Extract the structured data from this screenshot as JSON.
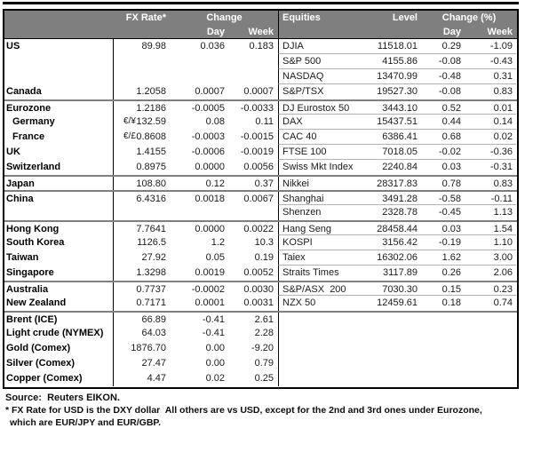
{
  "table": {
    "fx_header": {
      "rate": "FX Rate*",
      "change": "Change",
      "day": "Day",
      "week": "Week"
    },
    "eq_header": {
      "name": "Equities",
      "level": "Level",
      "change": "Change (%)",
      "day": "Day",
      "week": "Week"
    },
    "rows": [
      {
        "label": "US",
        "pair": "",
        "rate": "89.98",
        "day": "0.036",
        "week": "0.183",
        "name": "DJIA",
        "level": "11518.01",
        "eq_day": "0.29",
        "eq_week": "-1.09",
        "group": false,
        "indent": false
      },
      {
        "label": "",
        "pair": "",
        "rate": "",
        "day": "",
        "week": "",
        "name": "S&P 500",
        "level": "4155.86",
        "eq_day": "-0.08",
        "eq_week": "-0.43",
        "group": false,
        "indent": false
      },
      {
        "label": "",
        "pair": "",
        "rate": "",
        "day": "",
        "week": "",
        "name": "NASDAQ",
        "level": "13470.99",
        "eq_day": "-0.48",
        "eq_week": "0.31",
        "group": false,
        "indent": false
      },
      {
        "label": "Canada",
        "pair": "",
        "rate": "1.2058",
        "day": "0.0007",
        "week": "0.0007",
        "name": "S&P/TSX",
        "level": "19527.30",
        "eq_day": "-0.08",
        "eq_week": "0.83",
        "group": false,
        "indent": false
      },
      {
        "label": "Eurozone",
        "pair": "",
        "rate": "1.2186",
        "day": "-0.0005",
        "week": "-0.0033",
        "name": "DJ Eurostox 50",
        "level": "3443.10",
        "eq_day": "0.52",
        "eq_week": "0.01",
        "group": true,
        "indent": false
      },
      {
        "label": "Germany",
        "pair": "€/¥",
        "rate": "132.59",
        "day": "0.08",
        "week": "0.11",
        "name": "DAX",
        "level": "15437.51",
        "eq_day": "0.44",
        "eq_week": "0.14",
        "group": false,
        "indent": true
      },
      {
        "label": "France",
        "pair": "€/£",
        "rate": "0.8608",
        "day": "-0.0003",
        "week": "-0.0015",
        "name": "CAC 40",
        "level": "6386.41",
        "eq_day": "0.68",
        "eq_week": "0.02",
        "group": false,
        "indent": true
      },
      {
        "label": "UK",
        "pair": "",
        "rate": "1.4155",
        "day": "-0.0006",
        "week": "-0.0019",
        "name": "FTSE 100",
        "level": "7018.05",
        "eq_day": "-0.02",
        "eq_week": "-0.36",
        "group": false,
        "indent": false
      },
      {
        "label": "Switzerland",
        "pair": "",
        "rate": "0.8975",
        "day": "0.0000",
        "week": "0.0056",
        "name": "Swiss Mkt Index",
        "level": "2240.84",
        "eq_day": "0.03",
        "eq_week": "-0.31",
        "group": false,
        "indent": false
      },
      {
        "label": "Japan",
        "pair": "",
        "rate": "108.80",
        "day": "0.12",
        "week": "0.37",
        "name": "Nikkei",
        "level": "28317.83",
        "eq_day": "0.78",
        "eq_week": "0.83",
        "group": true,
        "indent": false
      },
      {
        "label": "China",
        "pair": "",
        "rate": "6.4316",
        "day": "0.0018",
        "week": "0.0067",
        "name": "Shanghai",
        "level": "3491.28",
        "eq_day": "-0.58",
        "eq_week": "-0.11",
        "group": true,
        "indent": false
      },
      {
        "label": "",
        "pair": "",
        "rate": "",
        "day": "",
        "week": "",
        "name": "Shenzen",
        "level": "2328.78",
        "eq_day": "-0.45",
        "eq_week": "1.13",
        "group": false,
        "indent": false
      },
      {
        "label": "Hong Kong",
        "pair": "",
        "rate": "7.7641",
        "day": "0.0000",
        "week": "0.0022",
        "name": "Hang Seng",
        "level": "28458.44",
        "eq_day": "0.03",
        "eq_week": "1.54",
        "group": true,
        "indent": false
      },
      {
        "label": "South Korea",
        "pair": "",
        "rate": "1126.5",
        "day": "1.2",
        "week": "10.3",
        "name": "KOSPI",
        "level": "3156.42",
        "eq_day": "-0.19",
        "eq_week": "1.10",
        "group": false,
        "indent": false
      },
      {
        "label": "Taiwan",
        "pair": "",
        "rate": "27.92",
        "day": "0.05",
        "week": "0.19",
        "name": "Taiex",
        "level": "16302.06",
        "eq_day": "1.62",
        "eq_week": "3.00",
        "group": false,
        "indent": false
      },
      {
        "label": "Singapore",
        "pair": "",
        "rate": "1.3298",
        "day": "0.0019",
        "week": "0.0052",
        "name": "Straits Times",
        "level": "3117.89",
        "eq_day": "0.26",
        "eq_week": "2.06",
        "group": false,
        "indent": false
      },
      {
        "label": "Australia",
        "pair": "",
        "rate": "0.7737",
        "day": "-0.0002",
        "week": "0.0030",
        "name": "S&P/ASX  200",
        "level": "7030.30",
        "eq_day": "0.15",
        "eq_week": "0.23",
        "group": true,
        "indent": false
      },
      {
        "label": "New Zealand",
        "pair": "",
        "rate": "0.7171",
        "day": "0.0001",
        "week": "0.0031",
        "name": "NZX 50",
        "level": "12459.61",
        "eq_day": "0.18",
        "eq_week": "0.74",
        "group": false,
        "indent": false
      },
      {
        "label": "Brent (ICE)",
        "pair": "",
        "rate": "66.89",
        "day": "-0.41",
        "week": "2.61",
        "name": "",
        "level": "",
        "eq_day": "",
        "eq_week": "",
        "group": true,
        "indent": false
      },
      {
        "label": "Light crude (NYMEX)",
        "pair": "",
        "rate": "64.03",
        "day": "-0.41",
        "week": "2.28",
        "name": "",
        "level": "",
        "eq_day": "",
        "eq_week": "",
        "group": false,
        "indent": false
      },
      {
        "label": "Gold (Comex)",
        "pair": "",
        "rate": "1876.70",
        "day": "0.00",
        "week": "-9.20",
        "name": "",
        "level": "",
        "eq_day": "",
        "eq_week": "",
        "group": false,
        "indent": false
      },
      {
        "label": "Silver (Comex)",
        "pair": "",
        "rate": "27.47",
        "day": "0.00",
        "week": "0.79",
        "name": "",
        "level": "",
        "eq_day": "",
        "eq_week": "",
        "group": false,
        "indent": false
      },
      {
        "label": "Copper (Comex)",
        "pair": "",
        "rate": "4.47",
        "day": "0.02",
        "week": "0.25",
        "name": "",
        "level": "",
        "eq_day": "",
        "eq_week": "",
        "group": false,
        "indent": false
      }
    ]
  },
  "footer": {
    "source": "Source:  Reuters EIKON.",
    "note1": "* FX Rate for USD is the DXY dollar  All others are vs USD, except for the 2nd and 3rd ones under Eurozone,",
    "note2": "which are EUR/JPY and EUR/GBP."
  },
  "colors": {
    "header_bg": "#7f7f7f",
    "header_text": "#ffffff",
    "border": "#000000",
    "group_line": "#7f7f7f",
    "row_line": "#b3b3b3",
    "label_text": "#000000",
    "number_text": "#1a1a1a"
  }
}
